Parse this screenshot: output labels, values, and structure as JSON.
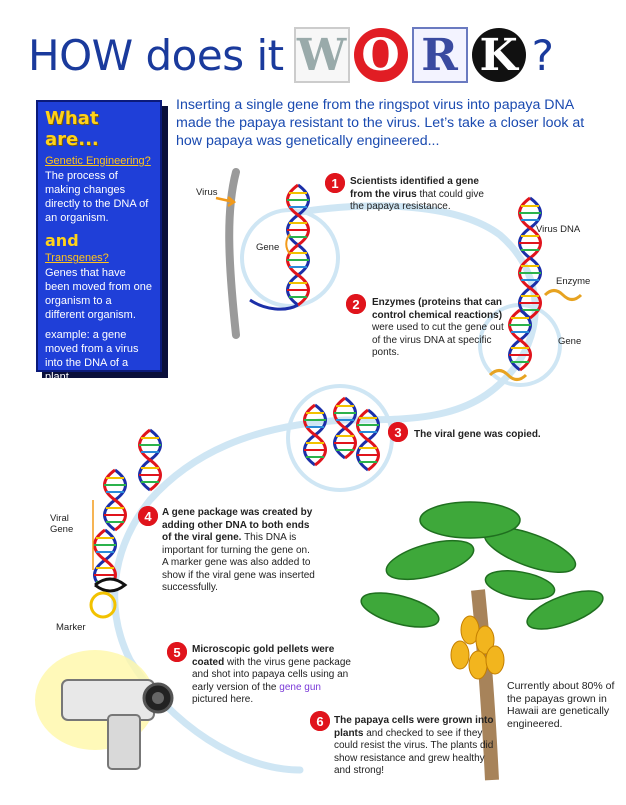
{
  "title": {
    "prefix": "HOW does it",
    "letters": [
      "W",
      "O",
      "R",
      "K"
    ],
    "suffix": "?"
  },
  "sidebar": {
    "heading": "What are...",
    "term1": "Genetic Engineering?",
    "def1": "The process of making changes directly to the DNA of an organism.",
    "and": "and",
    "term2": "Transgenes?",
    "def2": "Genes that have been moved from one organism to a different organism.",
    "example": "example: a gene moved from a virus into the DNA of a plant."
  },
  "intro": "Inserting a single gene from the ringspot virus into papaya DNA made the papaya resistant to the virus. Let’s take a closer look at how papaya was genetically engineered...",
  "labels": {
    "virus": "Virus",
    "gene1": "Gene",
    "virus_dna": "Virus DNA",
    "enzyme": "Enzyme",
    "gene2": "Gene",
    "viral_gene": "Viral Gene",
    "marker": "Marker"
  },
  "steps": [
    {
      "num": "1",
      "bold": "Scientists identified a gene from the virus",
      "rest": " that could give the papaya resistance."
    },
    {
      "num": "2",
      "bold": "Enzymes (proteins that can control chemical reactions)",
      "rest": " were used to cut the gene out of the virus DNA at specific ponts."
    },
    {
      "num": "3",
      "bold": "The viral gene was copied.",
      "rest": ""
    },
    {
      "num": "4",
      "bold": "A gene package was created by adding other DNA to both ends of the viral gene.",
      "rest": " This DNA is important for turning the gene on. A marker gene was also added to show if the viral gene was inserted successfully."
    },
    {
      "num": "5",
      "bold": "Microscopic gold pellets were coated",
      "rest": " with the virus gene package and shot into papaya cells using an early version of the ",
      "link": "gene gun",
      "tail": " pictured here."
    },
    {
      "num": "6",
      "bold": "The papaya cells were grown into plants",
      "rest": " and checked to see if they could resist the virus. The plants did show resistance and grew healthy and strong!"
    }
  ],
  "fact": "Currently about 80% of the papayas grown in Hawaii are genetically engineered.",
  "colors": {
    "title": "#1a3a9c",
    "sidebar_bg": "#1f3fd8",
    "sidebar_heading": "#ffd21a",
    "intro": "#1a4ab0",
    "badge": "#e0141c",
    "path": "#cfe6f4",
    "dna_blue": "#1b2fa8",
    "dna_red": "#e0141c"
  }
}
